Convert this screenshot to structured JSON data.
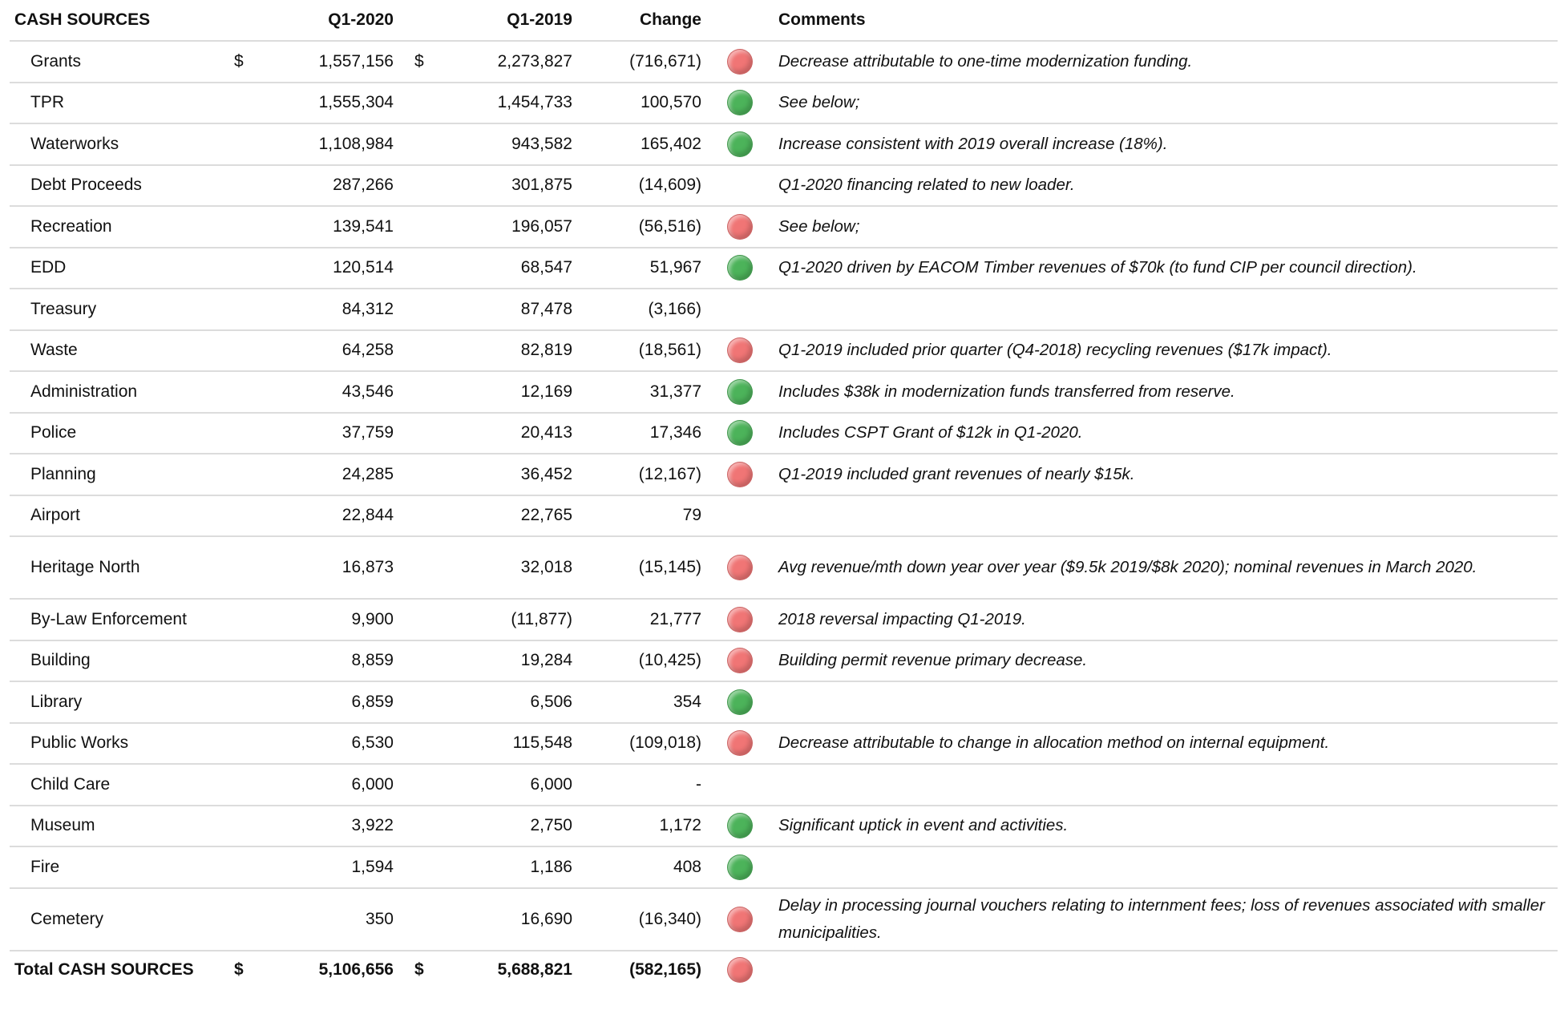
{
  "header": {
    "title": "CASH SOURCES",
    "col1": "Q1-2020",
    "col2": "Q1-2019",
    "change": "Change",
    "comments": "Comments"
  },
  "status_colors": {
    "red": "#f07575",
    "green": "#4cb35a"
  },
  "rows": [
    {
      "label": "Grants",
      "currency": "$",
      "q1_2020": "1,557,156",
      "q1_2019": "2,273,827",
      "change": "(716,671)",
      "status": "red",
      "comment": "Decrease attributable to one-time modernization funding."
    },
    {
      "label": "TPR",
      "q1_2020": "1,555,304",
      "q1_2019": "1,454,733",
      "change": "100,570",
      "status": "green",
      "comment": "See below;"
    },
    {
      "label": "Waterworks",
      "q1_2020": "1,108,984",
      "q1_2019": "943,582",
      "change": "165,402",
      "status": "green",
      "comment": "Increase consistent with 2019 overall increase (18%)."
    },
    {
      "label": "Debt Proceeds",
      "q1_2020": "287,266",
      "q1_2019": "301,875",
      "change": "(14,609)",
      "comment": "Q1-2020 financing related to new loader."
    },
    {
      "label": "Recreation",
      "q1_2020": "139,541",
      "q1_2019": "196,057",
      "change": "(56,516)",
      "status": "red",
      "comment": "See below;"
    },
    {
      "label": "EDD",
      "q1_2020": "120,514",
      "q1_2019": "68,547",
      "change": "51,967",
      "status": "green",
      "comment": "Q1-2020 driven by EACOM Timber revenues of $70k (to fund CIP per council direction)."
    },
    {
      "label": "Treasury",
      "q1_2020": "84,312",
      "q1_2019": "87,478",
      "change": "(3,166)"
    },
    {
      "label": "Waste",
      "q1_2020": "64,258",
      "q1_2019": "82,819",
      "change": "(18,561)",
      "status": "red",
      "comment": "Q1-2019 included prior quarter (Q4-2018) recycling revenues ($17k impact)."
    },
    {
      "label": "Administration",
      "q1_2020": "43,546",
      "q1_2019": "12,169",
      "change": "31,377",
      "status": "green",
      "comment": "Includes $38k in modernization funds transferred from reserve."
    },
    {
      "label": "Police",
      "q1_2020": "37,759",
      "q1_2019": "20,413",
      "change": "17,346",
      "status": "green",
      "comment": "Includes CSPT Grant of $12k in Q1-2020."
    },
    {
      "label": "Planning",
      "q1_2020": "24,285",
      "q1_2019": "36,452",
      "change": "(12,167)",
      "status": "red",
      "comment": "Q1-2019 included grant revenues of nearly $15k."
    },
    {
      "label": "Airport",
      "q1_2020": "22,844",
      "q1_2019": "22,765",
      "change": "79"
    },
    {
      "label": "Heritage North",
      "q1_2020": "16,873",
      "q1_2019": "32,018",
      "change": "(15,145)",
      "status": "red",
      "comment": "Avg revenue/mth down year over year ($9.5k 2019/$8k 2020); nominal revenues in March 2020."
    },
    {
      "label": "By-Law Enforcement",
      "q1_2020": "9,900",
      "q1_2019": "(11,877)",
      "change": "21,777",
      "status": "red",
      "comment": "2018 reversal impacting Q1-2019."
    },
    {
      "label": "Building",
      "q1_2020": "8,859",
      "q1_2019": "19,284",
      "change": "(10,425)",
      "status": "red",
      "comment": "Building permit revenue primary decrease."
    },
    {
      "label": "Library",
      "q1_2020": "6,859",
      "q1_2019": "6,506",
      "change": "354",
      "status": "green"
    },
    {
      "label": "Public Works",
      "q1_2020": "6,530",
      "q1_2019": "115,548",
      "change": "(109,018)",
      "status": "red",
      "comment": "Decrease attributable to change in allocation method on internal equipment."
    },
    {
      "label": "Child Care",
      "q1_2020": "6,000",
      "q1_2019": "6,000",
      "change": "-"
    },
    {
      "label": "Museum",
      "q1_2020": "3,922",
      "q1_2019": "2,750",
      "change": "1,172",
      "status": "green",
      "comment": "Significant uptick in event and activities."
    },
    {
      "label": "Fire",
      "q1_2020": "1,594",
      "q1_2019": "1,186",
      "change": "408",
      "status": "green"
    },
    {
      "label": "Cemetery",
      "q1_2020": "350",
      "q1_2019": "16,690",
      "change": "(16,340)",
      "status": "red",
      "comment": "Delay in processing journal vouchers relating to internment fees; loss of revenues associated with smaller municipalities."
    }
  ],
  "total": {
    "label": "Total CASH SOURCES",
    "currency": "$",
    "q1_2020": "5,106,656",
    "q1_2019": "5,688,821",
    "change": "(582,165)",
    "status": "red"
  }
}
